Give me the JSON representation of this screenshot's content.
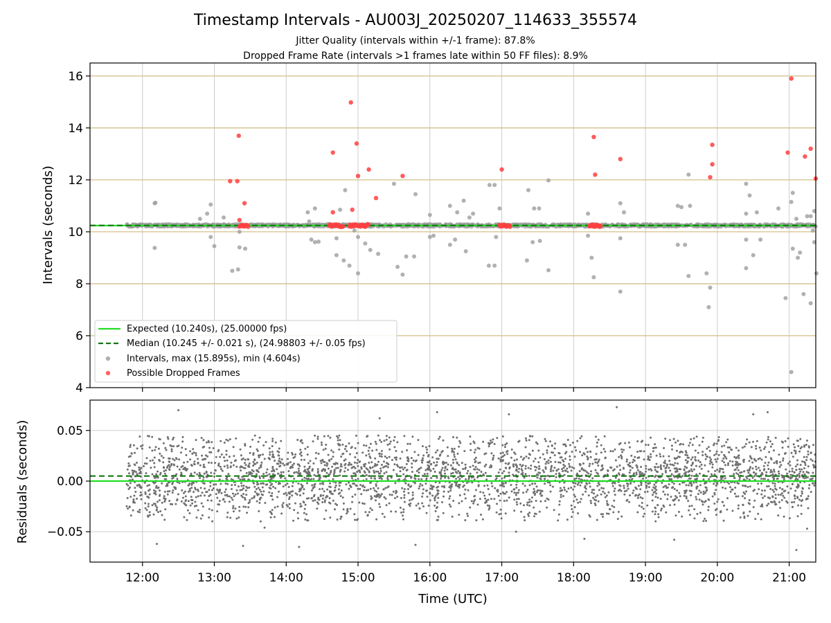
{
  "chart_data": {
    "title": "Timestamp Intervals - AU003J_20250207_114633_355574",
    "subtitle_1": "Jitter Quality (intervals within +/-1 frame): 87.8%",
    "subtitle_2": "Dropped Frame Rate (intervals >1 frames late within 50 FF files): 8.9%",
    "xlabel": "Time (UTC)",
    "x_ticks": [
      "12:00",
      "13:00",
      "14:00",
      "15:00",
      "16:00",
      "17:00",
      "18:00",
      "19:00",
      "20:00",
      "21:00"
    ],
    "x_range_hours": [
      11.27,
      21.37
    ],
    "data_start_hour": 11.78,
    "top_panel": {
      "type": "scatter",
      "ylabel": "Intervals (seconds)",
      "ylim": [
        4,
        16.5
      ],
      "y_ticks": [
        4,
        6,
        8,
        10,
        12,
        14,
        16
      ],
      "highlight_lines": [
        6,
        8,
        10,
        12,
        14,
        16
      ],
      "highlight_line_color": "#d4c28a",
      "expected": 10.24,
      "median": 10.245,
      "median_core_band": [
        10.2,
        10.29
      ],
      "intervals_color": "#9e9e9e",
      "dropped_color": "#ff4040",
      "legend_position": "lower-left",
      "legend": [
        {
          "label": "Expected (10.240s), (25.00000 fps)",
          "style": "line",
          "color": "#22dd22"
        },
        {
          "label": "Median (10.245 +/- 0.021 s), (24.98803 +/- 0.05 fps)",
          "style": "dashed",
          "color": "#117711"
        },
        {
          "label": "Intervals, max (15.895s), min (4.604s)",
          "style": "dot",
          "color": "#9e9e9e"
        },
        {
          "label": "Possible Dropped Frames",
          "style": "dot",
          "color": "#ff4040"
        }
      ],
      "outliers": [
        [
          12.17,
          11.1
        ],
        [
          12.17,
          9.38
        ],
        [
          12.18,
          11.12
        ],
        [
          12.8,
          10.5
        ],
        [
          12.9,
          10.7
        ],
        [
          12.95,
          9.8
        ],
        [
          13.0,
          9.45
        ],
        [
          12.95,
          11.05
        ],
        [
          13.25,
          8.5
        ],
        [
          13.33,
          8.55
        ],
        [
          13.35,
          9.4
        ],
        [
          13.43,
          9.35
        ],
        [
          13.35,
          10.0
        ],
        [
          14.3,
          10.75
        ],
        [
          14.35,
          9.7
        ],
        [
          14.4,
          9.6
        ],
        [
          14.4,
          10.9
        ],
        [
          14.45,
          9.62
        ],
        [
          14.7,
          9.1
        ],
        [
          14.7,
          9.75
        ],
        [
          14.75,
          10.85
        ],
        [
          14.82,
          11.6
        ],
        [
          14.8,
          8.9
        ],
        [
          14.88,
          8.7
        ],
        [
          14.95,
          10.05
        ],
        [
          15.0,
          9.8
        ],
        [
          15.0,
          8.4
        ],
        [
          15.1,
          9.55
        ],
        [
          15.17,
          9.3
        ],
        [
          15.28,
          9.15
        ],
        [
          15.5,
          11.85
        ],
        [
          15.55,
          8.65
        ],
        [
          15.62,
          8.35
        ],
        [
          15.67,
          9.05
        ],
        [
          15.8,
          11.45
        ],
        [
          15.78,
          9.05
        ],
        [
          16.0,
          10.65
        ],
        [
          16.05,
          10.2
        ],
        [
          16.05,
          9.85
        ],
        [
          16.0,
          9.8
        ],
        [
          16.28,
          11.0
        ],
        [
          16.28,
          9.5
        ],
        [
          16.35,
          9.7
        ],
        [
          16.38,
          10.75
        ],
        [
          16.47,
          11.2
        ],
        [
          16.5,
          9.25
        ],
        [
          16.6,
          10.7
        ],
        [
          16.55,
          10.55
        ],
        [
          16.83,
          11.8
        ],
        [
          16.9,
          11.8
        ],
        [
          16.82,
          8.7
        ],
        [
          16.9,
          8.7
        ],
        [
          16.92,
          9.8
        ],
        [
          16.97,
          10.9
        ],
        [
          17.37,
          11.6
        ],
        [
          17.35,
          8.9
        ],
        [
          17.43,
          9.6
        ],
        [
          17.45,
          10.9
        ],
        [
          17.52,
          10.9
        ],
        [
          17.53,
          9.65
        ],
        [
          17.65,
          11.98
        ],
        [
          17.65,
          8.52
        ],
        [
          18.2,
          9.85
        ],
        [
          18.25,
          9.0
        ],
        [
          18.28,
          8.25
        ],
        [
          18.2,
          10.7
        ],
        [
          18.65,
          11.1
        ],
        [
          18.65,
          9.75
        ],
        [
          18.65,
          7.7
        ],
        [
          18.7,
          10.75
        ],
        [
          19.45,
          11.0
        ],
        [
          19.5,
          10.95
        ],
        [
          19.45,
          9.5
        ],
        [
          19.55,
          9.5
        ],
        [
          19.6,
          12.2
        ],
        [
          19.62,
          11.0
        ],
        [
          19.6,
          8.3
        ],
        [
          19.85,
          8.4
        ],
        [
          19.9,
          7.85
        ],
        [
          19.88,
          7.1
        ],
        [
          20.4,
          11.85
        ],
        [
          20.45,
          11.4
        ],
        [
          20.4,
          10.7
        ],
        [
          20.4,
          9.7
        ],
        [
          20.4,
          8.6
        ],
        [
          20.5,
          9.1
        ],
        [
          20.55,
          10.75
        ],
        [
          20.6,
          9.7
        ],
        [
          20.85,
          10.9
        ],
        [
          20.95,
          7.45
        ],
        [
          21.03,
          11.15
        ],
        [
          21.05,
          11.5
        ],
        [
          21.05,
          9.35
        ],
        [
          21.1,
          10.5
        ],
        [
          21.12,
          9.0
        ],
        [
          21.15,
          9.2
        ],
        [
          21.2,
          7.6
        ],
        [
          21.25,
          10.6
        ],
        [
          21.3,
          10.6
        ],
        [
          21.3,
          7.25
        ],
        [
          21.33,
          10.05
        ],
        [
          21.35,
          9.6
        ],
        [
          21.35,
          10.8
        ],
        [
          21.38,
          8.4
        ],
        [
          21.03,
          4.6
        ],
        [
          13.13,
          10.55
        ],
        [
          14.32,
          10.4
        ]
      ],
      "dropped": [
        [
          13.22,
          11.95
        ],
        [
          13.32,
          11.95
        ],
        [
          13.34,
          13.7
        ],
        [
          13.42,
          11.1
        ],
        [
          13.35,
          10.45
        ],
        [
          14.65,
          13.05
        ],
        [
          14.65,
          10.75
        ],
        [
          14.9,
          14.98
        ],
        [
          14.92,
          10.85
        ],
        [
          14.98,
          13.4
        ],
        [
          15.0,
          12.15
        ],
        [
          15.15,
          12.4
        ],
        [
          15.25,
          11.3
        ],
        [
          15.62,
          12.15
        ],
        [
          17.0,
          12.4
        ],
        [
          18.28,
          13.65
        ],
        [
          18.3,
          12.2
        ],
        [
          18.65,
          12.8
        ],
        [
          19.9,
          12.1
        ],
        [
          19.93,
          12.6
        ],
        [
          19.93,
          13.35
        ],
        [
          20.98,
          13.05
        ],
        [
          21.03,
          15.9
        ],
        [
          21.22,
          12.9
        ],
        [
          21.3,
          13.2
        ],
        [
          21.37,
          12.05
        ]
      ],
      "dropped_clusters": [
        [
          13.35,
          13.48
        ],
        [
          14.6,
          14.8
        ],
        [
          14.88,
          15.15
        ],
        [
          16.97,
          17.12
        ],
        [
          18.22,
          18.38
        ]
      ]
    },
    "bottom_panel": {
      "type": "scatter",
      "ylabel": "Residuals (seconds)",
      "ylim": [
        -0.08,
        0.08
      ],
      "y_ticks": [
        -0.05,
        0.0,
        0.05
      ],
      "y_tick_labels": [
        "−0.05",
        "0.00",
        "0.05"
      ],
      "expected": 0.0,
      "median": 0.005,
      "residual_color": "#707070",
      "typical_range": [
        -0.04,
        0.045
      ],
      "point_count": 3200,
      "extremes": [
        [
          12.2,
          -0.062
        ],
        [
          13.4,
          -0.064
        ],
        [
          14.18,
          -0.065
        ],
        [
          15.8,
          -0.063
        ],
        [
          18.15,
          -0.057
        ],
        [
          19.4,
          -0.058
        ],
        [
          21.1,
          -0.068
        ],
        [
          21.25,
          -0.047
        ],
        [
          17.2,
          -0.05
        ],
        [
          13.7,
          -0.046
        ],
        [
          12.5,
          0.07
        ],
        [
          16.1,
          0.068
        ],
        [
          18.6,
          0.073
        ],
        [
          20.7,
          0.068
        ],
        [
          20.5,
          0.066
        ],
        [
          17.1,
          0.066
        ],
        [
          15.3,
          0.062
        ]
      ]
    },
    "colors": {
      "expected_line": "#22dd22",
      "median_line": "#117711",
      "grid": "#cccccc"
    }
  }
}
